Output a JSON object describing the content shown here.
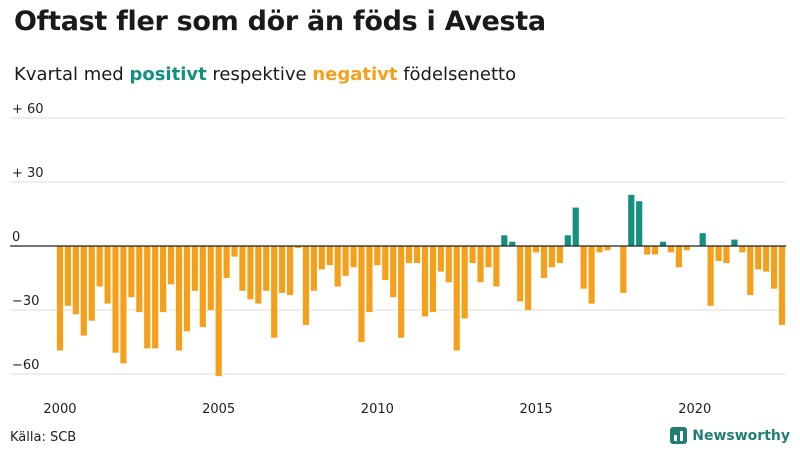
{
  "header": {
    "title": "Oftast fler som dör än föds i Avesta",
    "subtitle_before": "Kvartal med ",
    "subtitle_positive": "positivt",
    "subtitle_middle": " respektive ",
    "subtitle_negative": "negativt",
    "subtitle_after": " födelsenetto"
  },
  "footer": {
    "source": "Källa: SCB",
    "brand": "Newsworthy",
    "brand_icon": "bar-chart-icon"
  },
  "colors": {
    "positive": "#14907f",
    "negative": "#f5a01b",
    "grid": "#dddddd",
    "zero_line": "#222222"
  },
  "chart_data": {
    "type": "bar",
    "title": "Oftast fler som dör än föds i Avesta",
    "subtitle": "Kvartal med positivt respektive negativt födelsenetto",
    "xlabel": "",
    "ylabel": "",
    "ylim": [
      -60,
      60
    ],
    "yticks": [
      {
        "value": 60,
        "label": "+ 60"
      },
      {
        "value": 30,
        "label": "+ 30"
      },
      {
        "value": 0,
        "label": "0"
      },
      {
        "value": -30,
        "label": "−30"
      },
      {
        "value": -60,
        "label": "−60"
      }
    ],
    "xticks": [
      "2000",
      "2005",
      "2010",
      "2015",
      "2020"
    ],
    "grid": true,
    "start_year": 2000,
    "series": [
      {
        "values": [
          -49,
          -28,
          -32,
          -42,
          -35,
          -19,
          -27,
          -50,
          -55,
          -24,
          -31,
          -48,
          -48,
          -31,
          -18,
          -49,
          -40,
          -21,
          -38,
          -30,
          -61,
          -15,
          -5,
          -21,
          -25,
          -27,
          -21,
          -43,
          -22,
          -23,
          -1,
          -37,
          -21,
          -11,
          -9,
          -19,
          -14,
          -10,
          -45,
          -31,
          -9,
          -16,
          -24,
          -43,
          -8,
          -8,
          -33,
          -31,
          -12,
          -17,
          -49,
          -34,
          -8,
          -17,
          -10,
          -19,
          5,
          2,
          -26,
          -30,
          -3,
          -15,
          -10,
          -8,
          5,
          18,
          -20,
          -27,
          -3,
          -2,
          0,
          -22,
          24,
          21,
          -4,
          -4,
          2,
          -3,
          -10,
          -2,
          0,
          6,
          -28,
          -7,
          -8,
          3,
          -3,
          -23,
          -11,
          -12,
          -20,
          -37
        ]
      }
    ]
  }
}
